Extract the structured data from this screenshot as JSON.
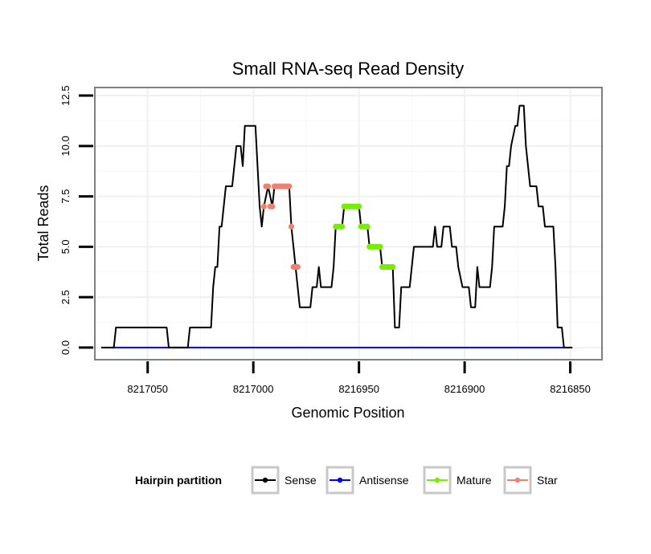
{
  "chart_data": {
    "type": "line",
    "title": "Small RNA-seq Read Density",
    "xlabel": "Genomic Position",
    "ylabel": "Total Reads",
    "x_reversed": true,
    "xlim": [
      8217075,
      8216835
    ],
    "ylim": [
      -0.6,
      12.9
    ],
    "x_ticks": [
      8217050,
      8217000,
      8216950,
      8216900,
      8216850
    ],
    "x_tick_labels": [
      "8217050",
      "8217000",
      "8216950",
      "8216900",
      "8216850"
    ],
    "y_ticks": [
      0,
      2.5,
      5,
      7.5,
      10,
      12.5
    ],
    "y_tick_labels": [
      "0.0",
      "2.5",
      "5.0",
      "7.5",
      "10.0",
      "12.5"
    ],
    "grid": true,
    "legend": {
      "title": "Hairpin partition",
      "position": "bottom",
      "entries": [
        "Sense",
        "Antisense",
        "Mature",
        "Star"
      ]
    },
    "series": [
      {
        "name": "Sense",
        "color": "#000000",
        "style": "line",
        "points": [
          [
            8217072,
            0
          ],
          [
            8217066,
            0
          ],
          [
            8217065,
            1
          ],
          [
            8217061,
            1
          ],
          [
            8217041,
            1
          ],
          [
            8217040,
            0
          ],
          [
            8217031,
            0
          ],
          [
            8217030,
            1
          ],
          [
            8217022,
            1
          ],
          [
            8217020,
            1
          ],
          [
            8217019,
            3
          ],
          [
            8217018,
            4
          ],
          [
            8217017,
            4
          ],
          [
            8217016,
            6
          ],
          [
            8217015,
            6
          ],
          [
            8217014,
            7
          ],
          [
            8217013,
            8
          ],
          [
            8217010,
            8
          ],
          [
            8217009,
            9
          ],
          [
            8217008,
            10
          ],
          [
            8217006,
            10
          ],
          [
            8217005,
            9
          ],
          [
            8217004,
            11
          ],
          [
            8216999,
            11
          ],
          [
            8216997,
            7
          ],
          [
            8216996,
            6
          ],
          [
            8216995,
            7
          ],
          [
            8216993,
            8
          ],
          [
            8216991,
            7
          ],
          [
            8216990,
            8
          ],
          [
            8216983,
            8
          ],
          [
            8216982,
            6
          ],
          [
            8216980,
            4
          ],
          [
            8216978,
            2
          ],
          [
            8216973,
            2
          ],
          [
            8216972,
            3
          ],
          [
            8216970,
            3
          ],
          [
            8216969,
            4
          ],
          [
            8216968,
            3
          ],
          [
            8216963,
            3
          ],
          [
            8216962,
            4
          ],
          [
            8216961,
            6
          ],
          [
            8216958,
            6
          ],
          [
            8216957,
            7
          ],
          [
            8216950,
            7
          ],
          [
            8216949,
            6
          ],
          [
            8216946,
            6
          ],
          [
            8216945,
            5
          ],
          [
            8216940,
            5
          ],
          [
            8216939,
            4
          ],
          [
            8216934,
            4
          ],
          [
            8216933,
            1
          ],
          [
            8216931,
            1
          ],
          [
            8216930,
            3
          ],
          [
            8216926,
            3
          ],
          [
            8216925,
            4
          ],
          [
            8216924,
            5
          ],
          [
            8216915,
            5
          ],
          [
            8216914,
            6
          ],
          [
            8216913,
            5
          ],
          [
            8216911,
            5
          ],
          [
            8216910,
            6
          ],
          [
            8216907,
            6
          ],
          [
            8216906,
            5
          ],
          [
            8216904,
            5
          ],
          [
            8216903,
            4
          ],
          [
            8216901,
            3
          ],
          [
            8216898,
            3
          ],
          [
            8216897,
            2
          ],
          [
            8216895,
            2
          ],
          [
            8216894,
            4
          ],
          [
            8216893,
            3
          ],
          [
            8216888,
            3
          ],
          [
            8216887,
            4
          ],
          [
            8216886,
            6
          ],
          [
            8216882,
            6
          ],
          [
            8216881,
            7
          ],
          [
            8216880,
            9
          ],
          [
            8216879,
            9
          ],
          [
            8216878,
            10
          ],
          [
            8216876,
            11
          ],
          [
            8216875,
            11
          ],
          [
            8216874,
            12
          ],
          [
            8216872,
            12
          ],
          [
            8216871,
            10
          ],
          [
            8216869,
            8
          ],
          [
            8216866,
            8
          ],
          [
            8216865,
            7
          ],
          [
            8216863,
            7
          ],
          [
            8216862,
            6
          ],
          [
            8216858,
            6
          ],
          [
            8216857,
            4
          ],
          [
            8216856,
            1
          ],
          [
            8216854,
            1
          ],
          [
            8216853,
            0
          ],
          [
            8216849,
            0
          ]
        ]
      },
      {
        "name": "Antisense",
        "color": "#0000ff",
        "style": "line",
        "points": [
          [
            8217067,
            0
          ],
          [
            8216853,
            0
          ]
        ]
      },
      {
        "name": "Mature",
        "color": "#77ee00",
        "style": "points",
        "points": [
          [
            8216961,
            6
          ],
          [
            8216960,
            6
          ],
          [
            8216959,
            6
          ],
          [
            8216958,
            6
          ],
          [
            8216957,
            7
          ],
          [
            8216956,
            7
          ],
          [
            8216955,
            7
          ],
          [
            8216954,
            7
          ],
          [
            8216953,
            7
          ],
          [
            8216952,
            7
          ],
          [
            8216951,
            7
          ],
          [
            8216950,
            7
          ],
          [
            8216949,
            6
          ],
          [
            8216948,
            6
          ],
          [
            8216947,
            6
          ],
          [
            8216946,
            6
          ],
          [
            8216945,
            5
          ],
          [
            8216944,
            5
          ],
          [
            8216943,
            5
          ],
          [
            8216942,
            5
          ],
          [
            8216941,
            5
          ],
          [
            8216940,
            5
          ],
          [
            8216939,
            4
          ],
          [
            8216938,
            4
          ],
          [
            8216937,
            4
          ],
          [
            8216936,
            4
          ],
          [
            8216935,
            4
          ],
          [
            8216934,
            4
          ]
        ]
      },
      {
        "name": "Star",
        "color": "#f08070",
        "style": "points",
        "points": [
          [
            8216995,
            7
          ],
          [
            8216994,
            8
          ],
          [
            8216993,
            8
          ],
          [
            8216992,
            7
          ],
          [
            8216991,
            7
          ],
          [
            8216990,
            8
          ],
          [
            8216989,
            8
          ],
          [
            8216988,
            8
          ],
          [
            8216987,
            8
          ],
          [
            8216986,
            8
          ],
          [
            8216985,
            8
          ],
          [
            8216984,
            8
          ],
          [
            8216983,
            8
          ],
          [
            8216982,
            6
          ],
          [
            8216981,
            4
          ],
          [
            8216980,
            4
          ],
          [
            8216979,
            4
          ]
        ]
      }
    ]
  }
}
